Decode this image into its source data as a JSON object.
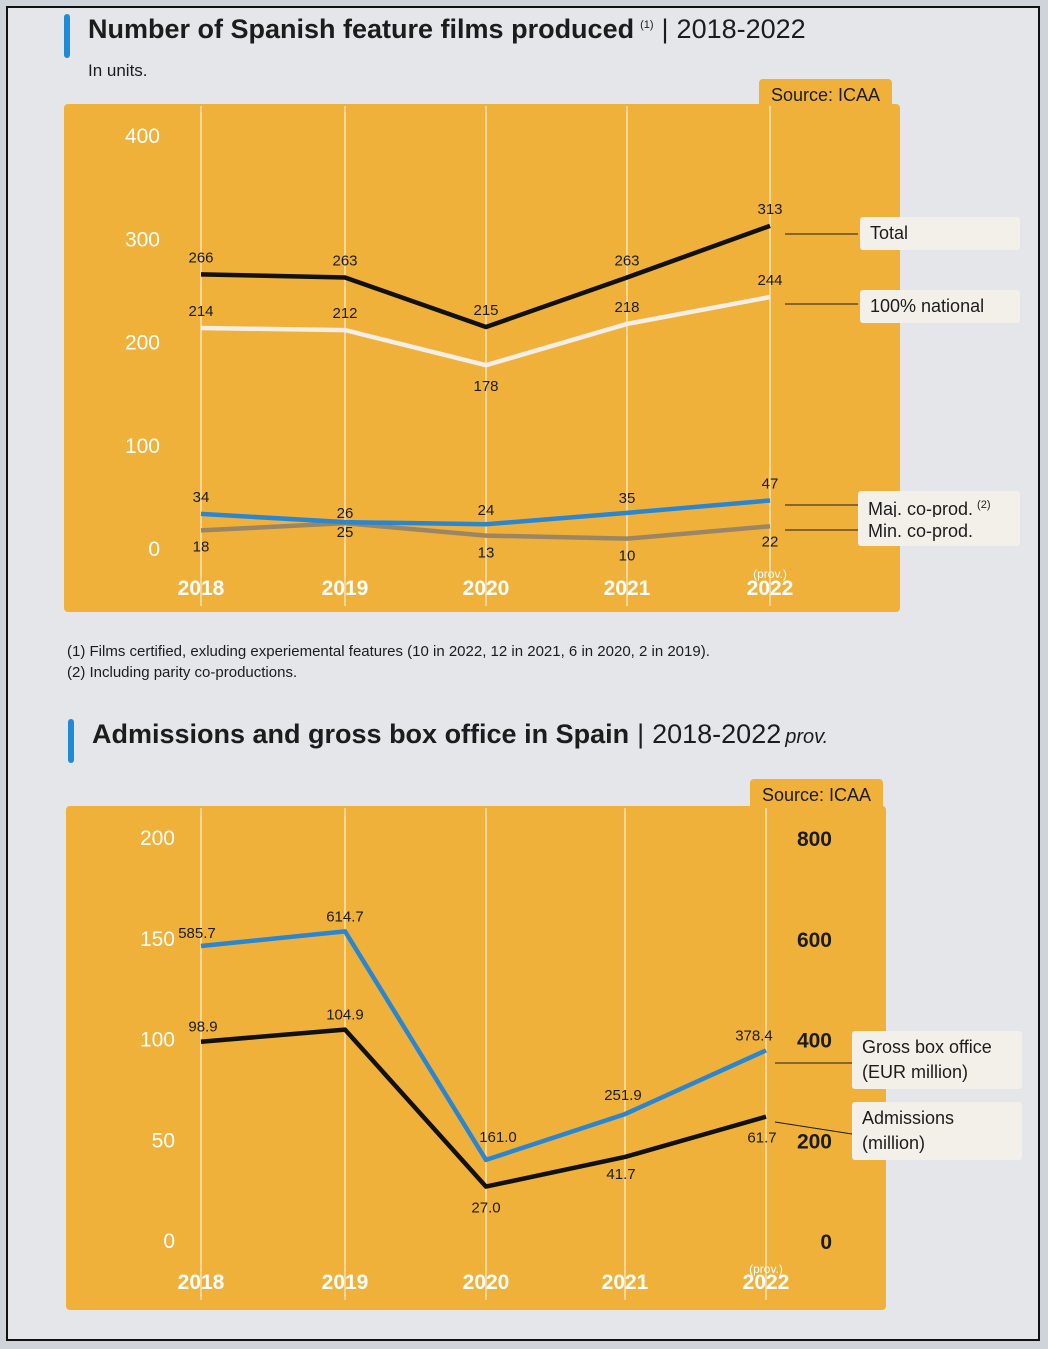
{
  "chart_data": [
    {
      "type": "line",
      "title": "Number of Spanish feature films produced",
      "title_note": "(1)",
      "period": "2018-2022",
      "subtitle": "In units.",
      "source": "Source: ICAA",
      "categories": [
        "2018",
        "2019",
        "2020",
        "2021",
        "2022"
      ],
      "category_notes": [
        "",
        "",
        "",
        "",
        "(prov.)"
      ],
      "ylim": [
        0,
        400
      ],
      "yticks": [
        0,
        100,
        200,
        300,
        400
      ],
      "grid": "vertical",
      "series": [
        {
          "name": "Total",
          "color": "#111111",
          "values": [
            266,
            263,
            215,
            263,
            313
          ],
          "labels": [
            "266",
            "263",
            "215",
            "263",
            "313"
          ]
        },
        {
          "name": "100% national",
          "color": "#f4eee6",
          "values": [
            214,
            212,
            178,
            218,
            244
          ],
          "labels": [
            "214",
            "212",
            "178",
            "218",
            "244"
          ]
        },
        {
          "name": "Maj. co-prod.",
          "name_note": "(2)",
          "color": "#2b86d1",
          "values": [
            34,
            26,
            24,
            35,
            47
          ],
          "labels": [
            "34",
            "26",
            "24",
            "35",
            "47"
          ]
        },
        {
          "name": "Min. co-prod.",
          "color": "#9a8664",
          "values": [
            18,
            25,
            13,
            10,
            22
          ],
          "labels": [
            "18",
            "25",
            "13",
            "10",
            "22"
          ]
        }
      ],
      "footnotes": [
        "(1) Films certified, exluding experiemental features (10 in 2022, 12 in 2021, 6 in 2020, 2 in 2019).",
        "(2) Including parity co-productions."
      ]
    },
    {
      "type": "line",
      "title": "Admissions and gross box office in Spain",
      "period": "2018-2022",
      "period_note": "prov.",
      "source": "Source: ICAA",
      "categories": [
        "2018",
        "2019",
        "2020",
        "2021",
        "2022"
      ],
      "category_notes": [
        "",
        "",
        "",
        "",
        "(prov.)"
      ],
      "ylim_left": [
        0,
        200
      ],
      "yticks_left": [
        0,
        50,
        100,
        150,
        200
      ],
      "ylim_right": [
        0,
        800
      ],
      "yticks_right": [
        0,
        200,
        400,
        600,
        800
      ],
      "grid": "vertical",
      "series": [
        {
          "name": "Gross box office (EUR million)",
          "legend_lines": [
            "Gross box office",
            "(EUR million)"
          ],
          "axis": "right",
          "color": "#2b86d1",
          "values": [
            585.7,
            614.7,
            161.0,
            251.9,
            378.4
          ],
          "labels": [
            "585.7",
            "614.7",
            "161.0",
            "251.9",
            "378.4"
          ]
        },
        {
          "name": "Admissions (million)",
          "legend_lines": [
            "Admissions",
            "(million)"
          ],
          "axis": "left",
          "color": "#111111",
          "values": [
            98.9,
            104.9,
            27.0,
            41.7,
            61.7
          ],
          "labels": [
            "98.9",
            "104.9",
            "27.0",
            "41.7",
            "61.7"
          ]
        }
      ]
    }
  ]
}
